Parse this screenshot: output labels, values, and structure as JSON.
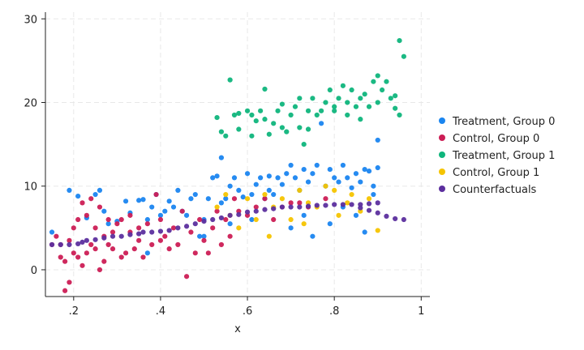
{
  "chart_data": {
    "type": "scatter",
    "title": "",
    "xlabel": "x",
    "ylabel": "",
    "xlim": [
      0.135,
      1.02
    ],
    "ylim": [
      -3.2,
      30.8
    ],
    "xticks": [
      0.2,
      0.4,
      0.6,
      0.8,
      1.0
    ],
    "xtick_labels": [
      ".2",
      ".4",
      ".6",
      ".8",
      "1"
    ],
    "yticks": [
      0,
      10,
      20,
      30
    ],
    "ytick_labels": [
      "0",
      "10",
      "20",
      "30"
    ],
    "grid": true,
    "legend_position": "right",
    "series": [
      {
        "name": "Treatment, Group 0",
        "color": "#1a85f0",
        "points": [
          [
            0.15,
            4.5
          ],
          [
            0.19,
            9.5
          ],
          [
            0.21,
            8.8
          ],
          [
            0.23,
            6.2
          ],
          [
            0.25,
            9.0
          ],
          [
            0.26,
            9.5
          ],
          [
            0.27,
            7.0
          ],
          [
            0.28,
            5.5
          ],
          [
            0.3,
            5.8
          ],
          [
            0.32,
            8.2
          ],
          [
            0.33,
            6.8
          ],
          [
            0.35,
            8.3
          ],
          [
            0.36,
            8.4
          ],
          [
            0.37,
            6.0
          ],
          [
            0.37,
            2.0
          ],
          [
            0.38,
            7.5
          ],
          [
            0.39,
            9.0
          ],
          [
            0.4,
            6.5
          ],
          [
            0.41,
            7.0
          ],
          [
            0.42,
            8.2
          ],
          [
            0.43,
            7.5
          ],
          [
            0.44,
            9.5
          ],
          [
            0.45,
            7.0
          ],
          [
            0.46,
            6.5
          ],
          [
            0.47,
            8.5
          ],
          [
            0.48,
            9.0
          ],
          [
            0.49,
            4.0
          ],
          [
            0.5,
            6.0
          ],
          [
            0.5,
            4.0
          ],
          [
            0.51,
            8.5
          ],
          [
            0.52,
            11.0
          ],
          [
            0.53,
            11.2
          ],
          [
            0.54,
            13.4
          ],
          [
            0.54,
            8.0
          ],
          [
            0.55,
            8.5
          ],
          [
            0.56,
            10.0
          ],
          [
            0.56,
            5.5
          ],
          [
            0.57,
            11.0
          ],
          [
            0.58,
            9.5
          ],
          [
            0.59,
            8.7
          ],
          [
            0.6,
            11.5
          ],
          [
            0.61,
            9.0
          ],
          [
            0.61,
            6.0
          ],
          [
            0.62,
            10.2
          ],
          [
            0.63,
            11.0
          ],
          [
            0.64,
            8.5
          ],
          [
            0.65,
            11.2
          ],
          [
            0.65,
            9.5
          ],
          [
            0.66,
            9.0
          ],
          [
            0.67,
            11.0
          ],
          [
            0.68,
            10.2
          ],
          [
            0.69,
            11.5
          ],
          [
            0.7,
            12.5
          ],
          [
            0.7,
            5.0
          ],
          [
            0.71,
            11.0
          ],
          [
            0.72,
            9.5
          ],
          [
            0.73,
            12.0
          ],
          [
            0.73,
            6.5
          ],
          [
            0.74,
            10.5
          ],
          [
            0.75,
            11.5
          ],
          [
            0.75,
            4.0
          ],
          [
            0.76,
            12.5
          ],
          [
            0.77,
            17.5
          ],
          [
            0.78,
            10.0
          ],
          [
            0.79,
            12.0
          ],
          [
            0.79,
            5.5
          ],
          [
            0.8,
            11.0
          ],
          [
            0.81,
            10.5
          ],
          [
            0.82,
            12.5
          ],
          [
            0.82,
            7.5
          ],
          [
            0.83,
            11.0
          ],
          [
            0.84,
            9.8
          ],
          [
            0.85,
            11.5
          ],
          [
            0.85,
            6.5
          ],
          [
            0.86,
            10.5
          ],
          [
            0.87,
            12.0
          ],
          [
            0.87,
            4.5
          ],
          [
            0.88,
            11.8
          ],
          [
            0.89,
            10.0
          ],
          [
            0.9,
            12.2
          ],
          [
            0.9,
            15.5
          ],
          [
            0.89,
            9.0
          ]
        ]
      },
      {
        "name": "Control, Group 0",
        "color": "#cc1d55",
        "points": [
          [
            0.15,
            3.0
          ],
          [
            0.16,
            4.0
          ],
          [
            0.17,
            1.5
          ],
          [
            0.17,
            3.0
          ],
          [
            0.18,
            -2.5
          ],
          [
            0.18,
            1.0
          ],
          [
            0.19,
            -1.5
          ],
          [
            0.19,
            3.5
          ],
          [
            0.2,
            2.0
          ],
          [
            0.2,
            5.0
          ],
          [
            0.21,
            6.0
          ],
          [
            0.21,
            1.5
          ],
          [
            0.22,
            0.5
          ],
          [
            0.22,
            8.0
          ],
          [
            0.23,
            2.0
          ],
          [
            0.23,
            6.5
          ],
          [
            0.24,
            3.0
          ],
          [
            0.24,
            8.5
          ],
          [
            0.25,
            2.5
          ],
          [
            0.25,
            5.0
          ],
          [
            0.26,
            0.0
          ],
          [
            0.26,
            7.5
          ],
          [
            0.27,
            4.0
          ],
          [
            0.27,
            1.0
          ],
          [
            0.28,
            6.0
          ],
          [
            0.28,
            3.0
          ],
          [
            0.29,
            2.5
          ],
          [
            0.29,
            4.5
          ],
          [
            0.3,
            5.5
          ],
          [
            0.31,
            1.5
          ],
          [
            0.31,
            6.0
          ],
          [
            0.32,
            2.0
          ],
          [
            0.33,
            4.5
          ],
          [
            0.33,
            6.5
          ],
          [
            0.34,
            2.5
          ],
          [
            0.35,
            5.0
          ],
          [
            0.35,
            3.5
          ],
          [
            0.36,
            1.5
          ],
          [
            0.37,
            5.5
          ],
          [
            0.38,
            3.0
          ],
          [
            0.39,
            9.0
          ],
          [
            0.4,
            6.0
          ],
          [
            0.4,
            3.5
          ],
          [
            0.41,
            4.0
          ],
          [
            0.42,
            2.5
          ],
          [
            0.43,
            5.0
          ],
          [
            0.44,
            3.0
          ],
          [
            0.45,
            7.0
          ],
          [
            0.46,
            -0.8
          ],
          [
            0.47,
            4.5
          ],
          [
            0.48,
            2.0
          ],
          [
            0.49,
            6.0
          ],
          [
            0.5,
            3.5
          ],
          [
            0.51,
            2.0
          ],
          [
            0.52,
            5.0
          ],
          [
            0.53,
            7.0
          ],
          [
            0.54,
            3.0
          ],
          [
            0.55,
            6.0
          ],
          [
            0.56,
            4.0
          ],
          [
            0.57,
            8.5
          ],
          [
            0.58,
            7.0
          ],
          [
            0.6,
            6.5
          ],
          [
            0.62,
            7.5
          ],
          [
            0.64,
            8.5
          ],
          [
            0.66,
            6.0
          ],
          [
            0.68,
            7.5
          ],
          [
            0.7,
            8.0
          ],
          [
            0.72,
            8.0
          ],
          [
            0.74,
            7.5
          ],
          [
            0.78,
            8.5
          ]
        ]
      },
      {
        "name": "Treatment, Group 1",
        "color": "#0fb57c",
        "points": [
          [
            0.53,
            18.2
          ],
          [
            0.54,
            16.5
          ],
          [
            0.55,
            16.0
          ],
          [
            0.56,
            22.7
          ],
          [
            0.57,
            18.5
          ],
          [
            0.58,
            18.7
          ],
          [
            0.58,
            16.8
          ],
          [
            0.6,
            19.0
          ],
          [
            0.61,
            16.0
          ],
          [
            0.61,
            18.5
          ],
          [
            0.62,
            17.8
          ],
          [
            0.63,
            19.0
          ],
          [
            0.64,
            21.6
          ],
          [
            0.64,
            18.0
          ],
          [
            0.65,
            16.2
          ],
          [
            0.66,
            17.5
          ],
          [
            0.67,
            19.0
          ],
          [
            0.68,
            19.8
          ],
          [
            0.68,
            17.0
          ],
          [
            0.69,
            16.5
          ],
          [
            0.7,
            18.5
          ],
          [
            0.71,
            19.5
          ],
          [
            0.72,
            20.5
          ],
          [
            0.72,
            17.0
          ],
          [
            0.73,
            15.0
          ],
          [
            0.74,
            19.0
          ],
          [
            0.75,
            20.5
          ],
          [
            0.76,
            18.5
          ],
          [
            0.77,
            19.0
          ],
          [
            0.78,
            20.0
          ],
          [
            0.79,
            21.5
          ],
          [
            0.8,
            19.0
          ],
          [
            0.81,
            20.5
          ],
          [
            0.82,
            22.0
          ],
          [
            0.83,
            20.0
          ],
          [
            0.83,
            18.5
          ],
          [
            0.84,
            21.5
          ],
          [
            0.85,
            19.5
          ],
          [
            0.86,
            20.5
          ],
          [
            0.87,
            21.0
          ],
          [
            0.88,
            19.5
          ],
          [
            0.89,
            22.5
          ],
          [
            0.9,
            23.2
          ],
          [
            0.9,
            20.0
          ],
          [
            0.91,
            21.5
          ],
          [
            0.92,
            22.5
          ],
          [
            0.93,
            20.5
          ],
          [
            0.94,
            19.3
          ],
          [
            0.95,
            27.4
          ],
          [
            0.96,
            25.5
          ],
          [
            0.94,
            20.8
          ],
          [
            0.95,
            18.5
          ],
          [
            0.86,
            18.0
          ],
          [
            0.8,
            19.5
          ],
          [
            0.74,
            16.8
          ]
        ]
      },
      {
        "name": "Control, Group 1",
        "color": "#f5c400",
        "points": [
          [
            0.53,
            7.5
          ],
          [
            0.55,
            9.0
          ],
          [
            0.56,
            6.5
          ],
          [
            0.58,
            5.0
          ],
          [
            0.6,
            8.5
          ],
          [
            0.62,
            6.0
          ],
          [
            0.64,
            9.0
          ],
          [
            0.65,
            4.0
          ],
          [
            0.66,
            7.5
          ],
          [
            0.68,
            8.5
          ],
          [
            0.7,
            6.0
          ],
          [
            0.72,
            9.5
          ],
          [
            0.73,
            5.5
          ],
          [
            0.74,
            8.0
          ],
          [
            0.76,
            7.5
          ],
          [
            0.78,
            10.0
          ],
          [
            0.8,
            9.5
          ],
          [
            0.81,
            6.5
          ],
          [
            0.83,
            8.0
          ],
          [
            0.84,
            9.0
          ],
          [
            0.86,
            7.0
          ],
          [
            0.88,
            8.5
          ],
          [
            0.9,
            4.7
          ]
        ]
      },
      {
        "name": "Counterfactuals",
        "color": "#5c2f9e",
        "points": [
          [
            0.15,
            3.0
          ],
          [
            0.17,
            3.0
          ],
          [
            0.19,
            3.0
          ],
          [
            0.21,
            3.1
          ],
          [
            0.22,
            3.3
          ],
          [
            0.23,
            3.5
          ],
          [
            0.25,
            3.6
          ],
          [
            0.27,
            3.8
          ],
          [
            0.29,
            4.0
          ],
          [
            0.31,
            4.0
          ],
          [
            0.33,
            4.2
          ],
          [
            0.35,
            4.3
          ],
          [
            0.36,
            4.5
          ],
          [
            0.38,
            4.5
          ],
          [
            0.4,
            4.6
          ],
          [
            0.42,
            4.7
          ],
          [
            0.44,
            5.0
          ],
          [
            0.46,
            5.2
          ],
          [
            0.48,
            5.5
          ],
          [
            0.5,
            5.8
          ],
          [
            0.52,
            6.0
          ],
          [
            0.54,
            6.2
          ],
          [
            0.56,
            6.5
          ],
          [
            0.58,
            6.6
          ],
          [
            0.6,
            6.9
          ],
          [
            0.62,
            7.0
          ],
          [
            0.64,
            7.2
          ],
          [
            0.66,
            7.3
          ],
          [
            0.68,
            7.5
          ],
          [
            0.7,
            7.5
          ],
          [
            0.72,
            7.5
          ],
          [
            0.74,
            7.6
          ],
          [
            0.76,
            7.7
          ],
          [
            0.78,
            7.7
          ],
          [
            0.8,
            7.8
          ],
          [
            0.82,
            7.8
          ],
          [
            0.84,
            7.8
          ],
          [
            0.86,
            7.8
          ],
          [
            0.88,
            7.9
          ],
          [
            0.9,
            8.0
          ],
          [
            0.86,
            7.4
          ],
          [
            0.88,
            7.1
          ],
          [
            0.9,
            6.8
          ],
          [
            0.92,
            6.4
          ],
          [
            0.94,
            6.1
          ],
          [
            0.96,
            6.0
          ]
        ]
      }
    ]
  }
}
